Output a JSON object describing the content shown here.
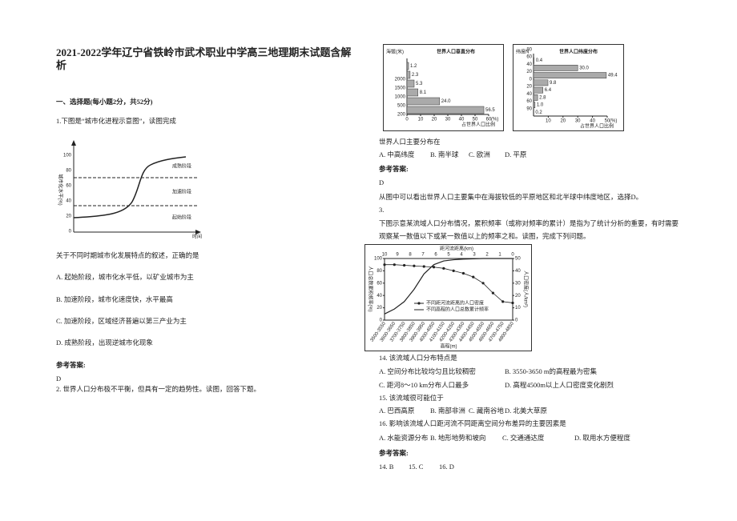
{
  "header": {
    "title": "2021-2022学年辽宁省铁岭市武术职业中学高三地理期末试题含解析"
  },
  "section": "一、选择题(每小题2分，共52分)",
  "q1": {
    "stem": "1.下图是“城市化进程示意图”，读图完成",
    "figure": {
      "y_label": "城市化水平(%)",
      "yticks": [
        "100",
        "80",
        "60",
        "40",
        "20",
        "0"
      ],
      "stages": [
        "成熟阶段",
        "加速阶段",
        "起始阶段"
      ],
      "x_label": "时间"
    },
    "question": "关于不同时期城市化发展特点的叙述，正确的是",
    "options": [
      "A. 起始阶段，城市化水平低，以矿业城市为主",
      "B. 加速阶段，城市化速度快，水平最高",
      "C. 加速阶段，区域经济普遍以第三产业为主",
      "D. 成熟阶段，出现逆城市化现象"
    ],
    "answer_label": "参考答案:",
    "answer": "D"
  },
  "q2": {
    "stem": "2. 世界人口分布极不平衡，但具有一定的趋势性。读图，回答下题。",
    "charts": [
      {
        "title": "世界人口垂直分布",
        "y_label": "海拔(米)",
        "row_labels": [
          "2000",
          "1500",
          "1000",
          "500",
          "200"
        ],
        "values": [
          1.2,
          2.3,
          5.3,
          8.1,
          24,
          56.5
        ],
        "value_labels": [
          "1.2",
          "2.3",
          "5.3",
          "8.1",
          "24.0",
          "56.5"
        ],
        "xlim": [
          0,
          60
        ],
        "xticks": [
          0,
          10,
          20,
          30,
          40,
          50,
          60
        ],
        "x_unit": "(%)",
        "x_label": "占世界人口比例"
      },
      {
        "title": "世界人口纬度分布",
        "y_label": "纬度N",
        "row_labels": [
          "80",
          "60",
          "40",
          "20",
          "0",
          "20",
          "40",
          "60",
          "90"
        ],
        "values": [
          0.4,
          30,
          49.4,
          9.8,
          6.4,
          2.8,
          1,
          0.2
        ],
        "value_labels": [
          "0.4",
          "30.0",
          "49.4",
          "9.8",
          "6.4",
          "2.8",
          "1.0",
          "0.2"
        ],
        "xlim": [
          0,
          50
        ],
        "xticks": [
          10,
          20,
          30,
          40,
          50
        ],
        "x_unit": "(%)",
        "x_label": "占世界人口比例"
      }
    ],
    "question": "世界人口主要分布在",
    "options": [
      "A. 中高纬度",
      "B. 南半球",
      "C. 欧洲",
      "D. 平原"
    ],
    "answer_label": "参考答案:",
    "answer": "D",
    "explanation": "从图中可以看出世界人口主要集中在海拔较低的平原地区和北半球中纬度地区，选择D。"
  },
  "q3": {
    "number": "3.",
    "stem": [
      "下图示意某流域人口分布情况，累积频率（或称对频率的累计）是指为了统计分析的重要，有时需要",
      "观察某一数值以下或某一数值以上的频率之和。读图，完成下列问题。"
    ],
    "chart": {
      "top_label": "距河流距离(km)",
      "top_ticks": [
        "10",
        "9",
        "8",
        "7",
        "6",
        "5",
        "4",
        "3",
        "2",
        "1",
        "0"
      ],
      "y_label": "人口总数累积频率(%)",
      "ylim": [
        0,
        100
      ],
      "yticks": [
        100,
        80,
        60,
        40,
        20,
        0
      ],
      "y2_label": "人口密度(人/km²)",
      "y2lim": [
        0,
        50
      ],
      "y2ticks": [
        50,
        40,
        30,
        20,
        10,
        0
      ],
      "x_label": "高程(m)",
      "categories": [
        "3500-3550",
        "3600-3650",
        "3700-3750",
        "3800-3850",
        "3900-3950",
        "4000-4050",
        "4100-4150",
        "4200-4250",
        "4300-4350",
        "4400-4450",
        "4500-4550",
        "4600-4650",
        "4700-4750",
        "4800-4850"
      ],
      "series": [
        {
          "name": "不同距河流距离的人口密度",
          "axis": "y2",
          "values": [
            45,
            45,
            44.5,
            44,
            43.5,
            43,
            42,
            40,
            38,
            35,
            30,
            22,
            15,
            14
          ]
        },
        {
          "name": "不同高程的人口总数累计频率",
          "values": [
            10,
            18,
            30,
            50,
            75,
            90,
            96,
            98,
            99,
            99.5,
            100,
            100,
            100,
            100
          ]
        }
      ]
    },
    "questions": [
      {
        "stem": "14. 该流域人口分布特点是",
        "options": [
          "A. 空间分布比较均匀且比较稠密",
          "B. 3550-3650 m的高程最为密集",
          "C. 距河8～10 km分布人口最多",
          "D. 高程4500m以上人口密度变化剧烈"
        ]
      },
      {
        "stem": "15. 该流域很可能位于",
        "options": [
          "A. 巴西高原",
          "B. 南部非洲",
          "C. 藏南谷地",
          "D. 北美大草原"
        ]
      },
      {
        "stem": "16. 影响该流域人口距河流不同距离空间分布差异的主要因素是",
        "options": [
          "A. 水能资源分布",
          "B. 地形地势和坡向",
          "C. 交通通达度",
          "D. 取用水方便程度"
        ]
      }
    ],
    "answer_label": "参考答案:",
    "answers": [
      "14. B",
      "15. C",
      "16. D"
    ]
  }
}
